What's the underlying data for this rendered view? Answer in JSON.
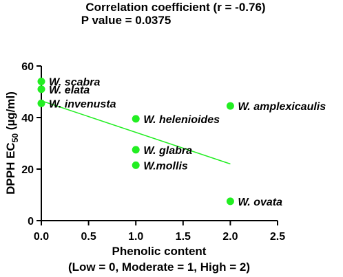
{
  "chart_data": {
    "type": "scatter",
    "title": "Correlation coefficient (r = -0.76)",
    "subtitle": "P value = 0.0375",
    "xlabel": "Phenolic content",
    "xlabel_sub": "(Low = 0, Moderate = 1, High = 2)",
    "ylabel_main": "DPPH EC",
    "ylabel_subscript": "50",
    "ylabel_unit": " (µg/ml)",
    "xlim": [
      0,
      2.5
    ],
    "ylim": [
      0,
      60
    ],
    "x_ticks": [
      "0.0",
      "0.5",
      "1.0",
      "1.5",
      "2.0",
      "2.5"
    ],
    "y_ticks": [
      "0",
      "20",
      "40",
      "60"
    ],
    "grid": false,
    "point_color": "#22ee22",
    "trendline_color": "#22ee22",
    "trendline": {
      "x": [
        0,
        2
      ],
      "y": [
        46.5,
        22
      ]
    },
    "points": [
      {
        "label": "W. scabra",
        "x": 0,
        "y": 54
      },
      {
        "label": "W. elata",
        "x": 0,
        "y": 51
      },
      {
        "label": "W. invenusta",
        "x": 0,
        "y": 45.5
      },
      {
        "label": "W. helenioides",
        "x": 1,
        "y": 39.5
      },
      {
        "label": "W. glabra",
        "x": 1,
        "y": 27.5
      },
      {
        "label": "W.mollis",
        "x": 1,
        "y": 21.5
      },
      {
        "label": "W. amplexicaulis",
        "x": 2,
        "y": 44.5
      },
      {
        "label": "W. ovata",
        "x": 2,
        "y": 7.5
      }
    ]
  }
}
